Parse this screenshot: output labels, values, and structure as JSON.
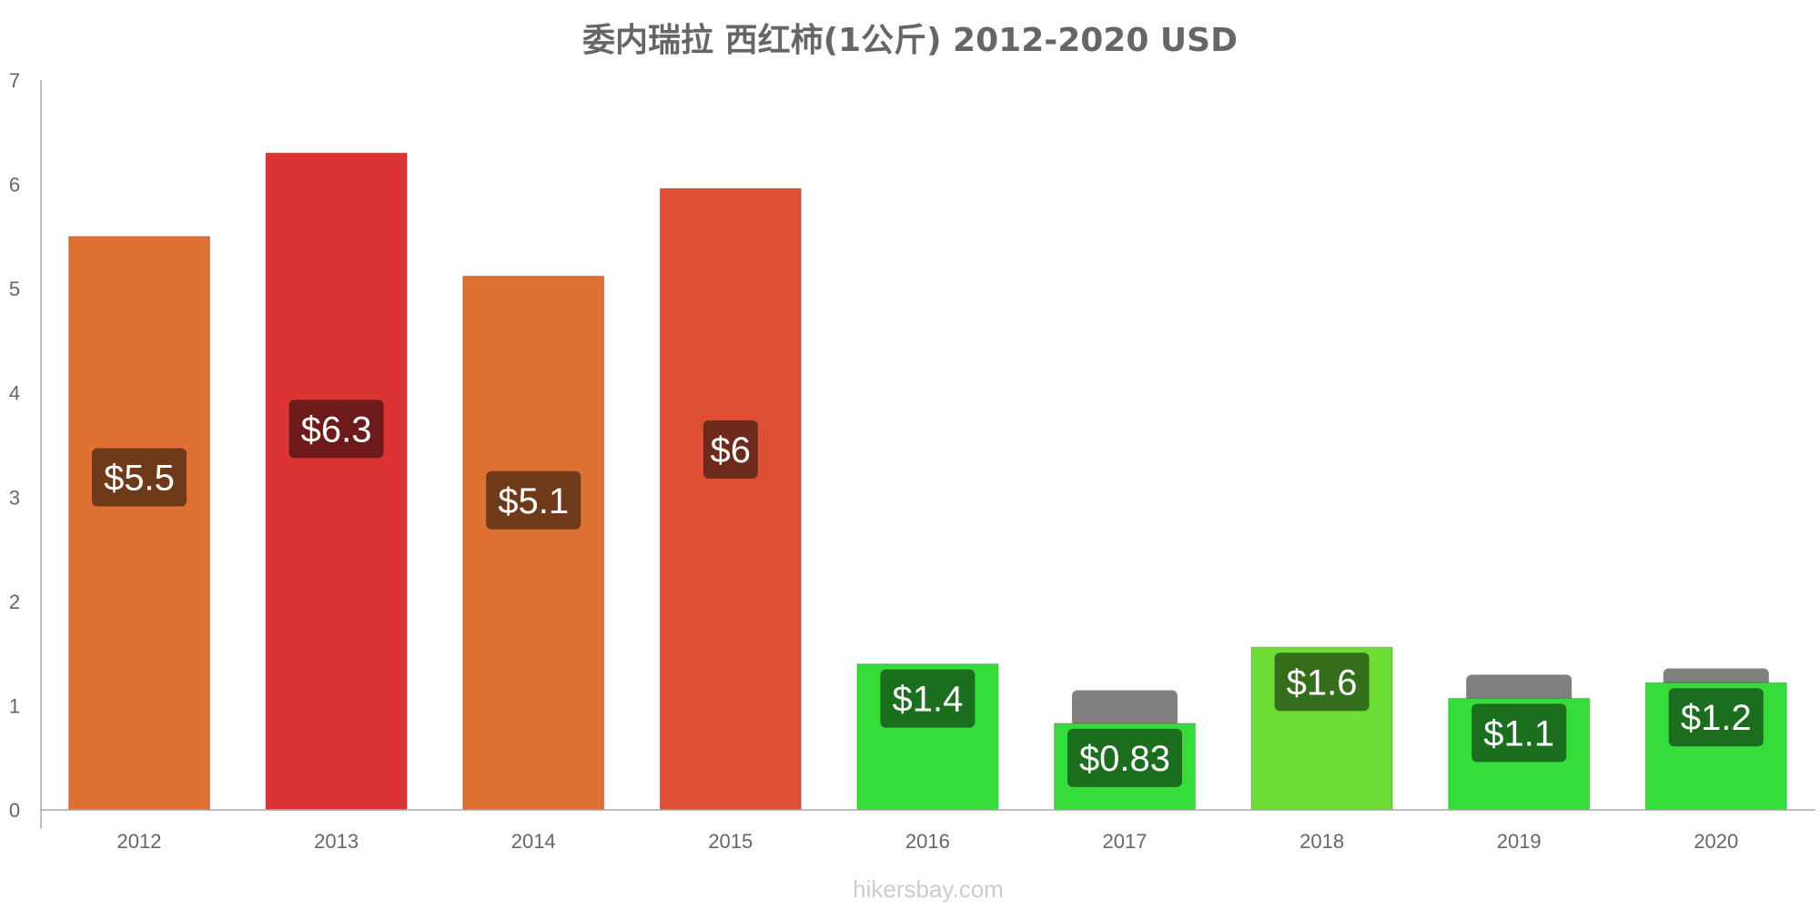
{
  "chart_data": {
    "type": "bar",
    "title": "委内瑞拉 西红柿(1公斤) 2012-2020 USD",
    "xlabel": "",
    "ylabel": "",
    "ylim": [
      0,
      7
    ],
    "yticks": [
      "0",
      "1",
      "2",
      "3",
      "4",
      "5",
      "6",
      "7"
    ],
    "categories": [
      "2012",
      "2013",
      "2014",
      "2015",
      "2016",
      "2017",
      "2018",
      "2019",
      "2020"
    ],
    "values": [
      5.5,
      6.3,
      5.12,
      5.96,
      1.4,
      0.83,
      1.56,
      1.07,
      1.22
    ],
    "labels": [
      "$5.5",
      "$6.3",
      "$5.1",
      "$6",
      "$1.4",
      "$0.83",
      "$1.6",
      "$1.1",
      "$1.2"
    ],
    "bar_colors": [
      "#df7034",
      "#dc3434",
      "#df7034",
      "#dd5034",
      "#35dc3a",
      "#35dc3a",
      "#6ddc35",
      "#35dc3a",
      "#35dc3a"
    ],
    "label_bg_colors": [
      "#6e3a1a",
      "#6e1a1a",
      "#6e3a1a",
      "#6e2a1a",
      "#1a6e1d",
      "#1a6e1d",
      "#356e1a",
      "#1a6e1d",
      "#1a6e1d"
    ],
    "previous_markers": [
      null,
      null,
      null,
      null,
      null,
      1.06,
      null,
      1.21,
      1.27
    ],
    "grid": false,
    "legend": "none"
  },
  "credit": "hikersbay.com"
}
